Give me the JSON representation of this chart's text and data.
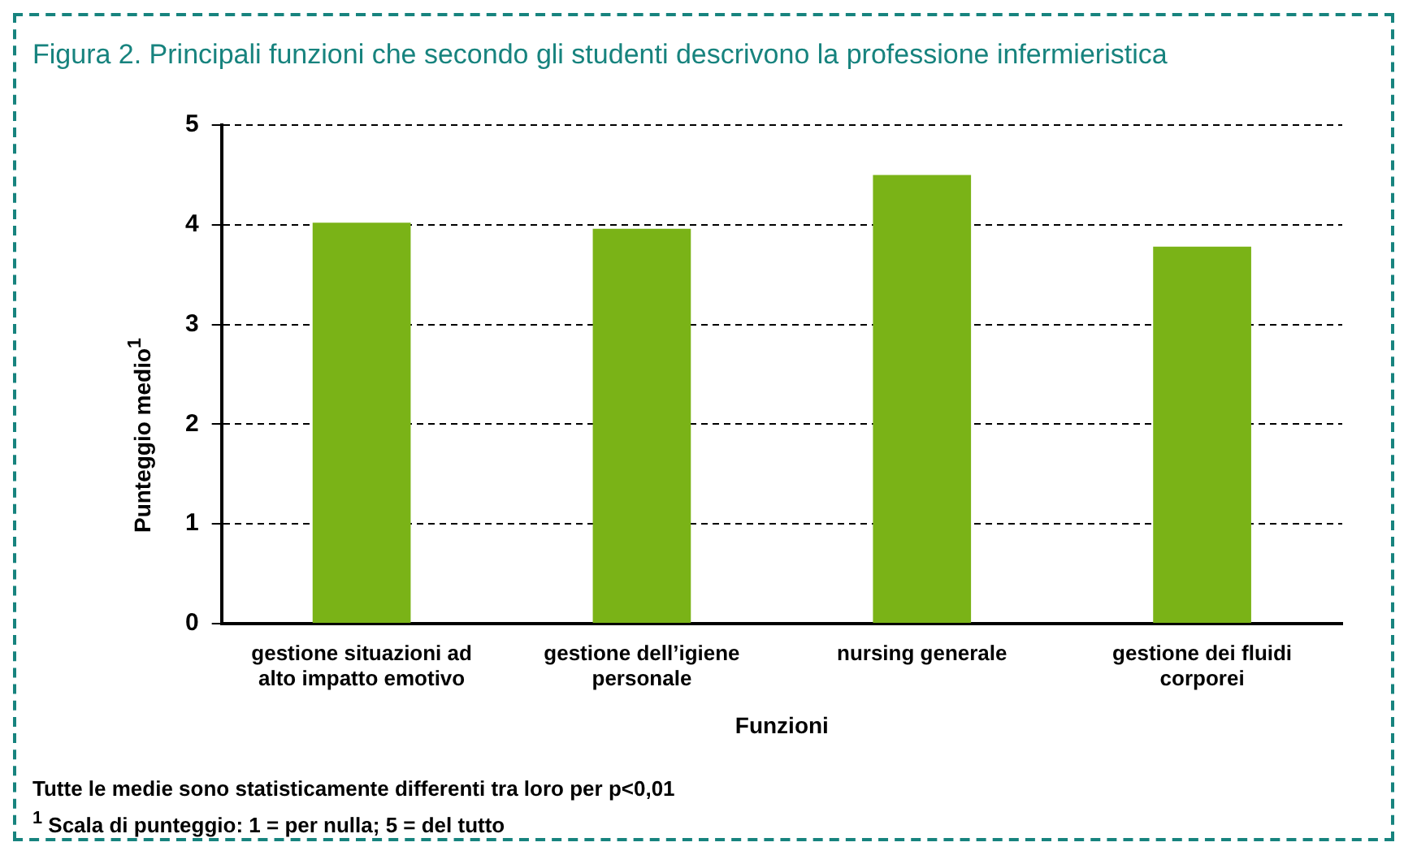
{
  "chart_data": {
    "type": "bar",
    "title": "Figura 2. Principali funzioni che secondo gli studenti descrivono la professione infermieristica",
    "categories": [
      "gestione situazioni ad alto impatto emotivo",
      "gestione dell’igiene personale",
      "nursing generale",
      "gestione dei fluidi corporei"
    ],
    "values": [
      4.02,
      3.96,
      4.5,
      3.78
    ],
    "color": "#7ab317",
    "ylim": [
      0,
      5
    ],
    "yticks": [
      0,
      1,
      2,
      3,
      4,
      5
    ],
    "grid": "y",
    "legend": false,
    "xlabel": "Funzioni",
    "ylabel": "Punteggio medio$^{1}$",
    "annotations": [
      "Tutte le medie sono statisticamente differenti tra loro per p<0,01",
      "$^{1}$ Scala di punteggio: 1 = per nulla; 5 = del tutto"
    ]
  }
}
